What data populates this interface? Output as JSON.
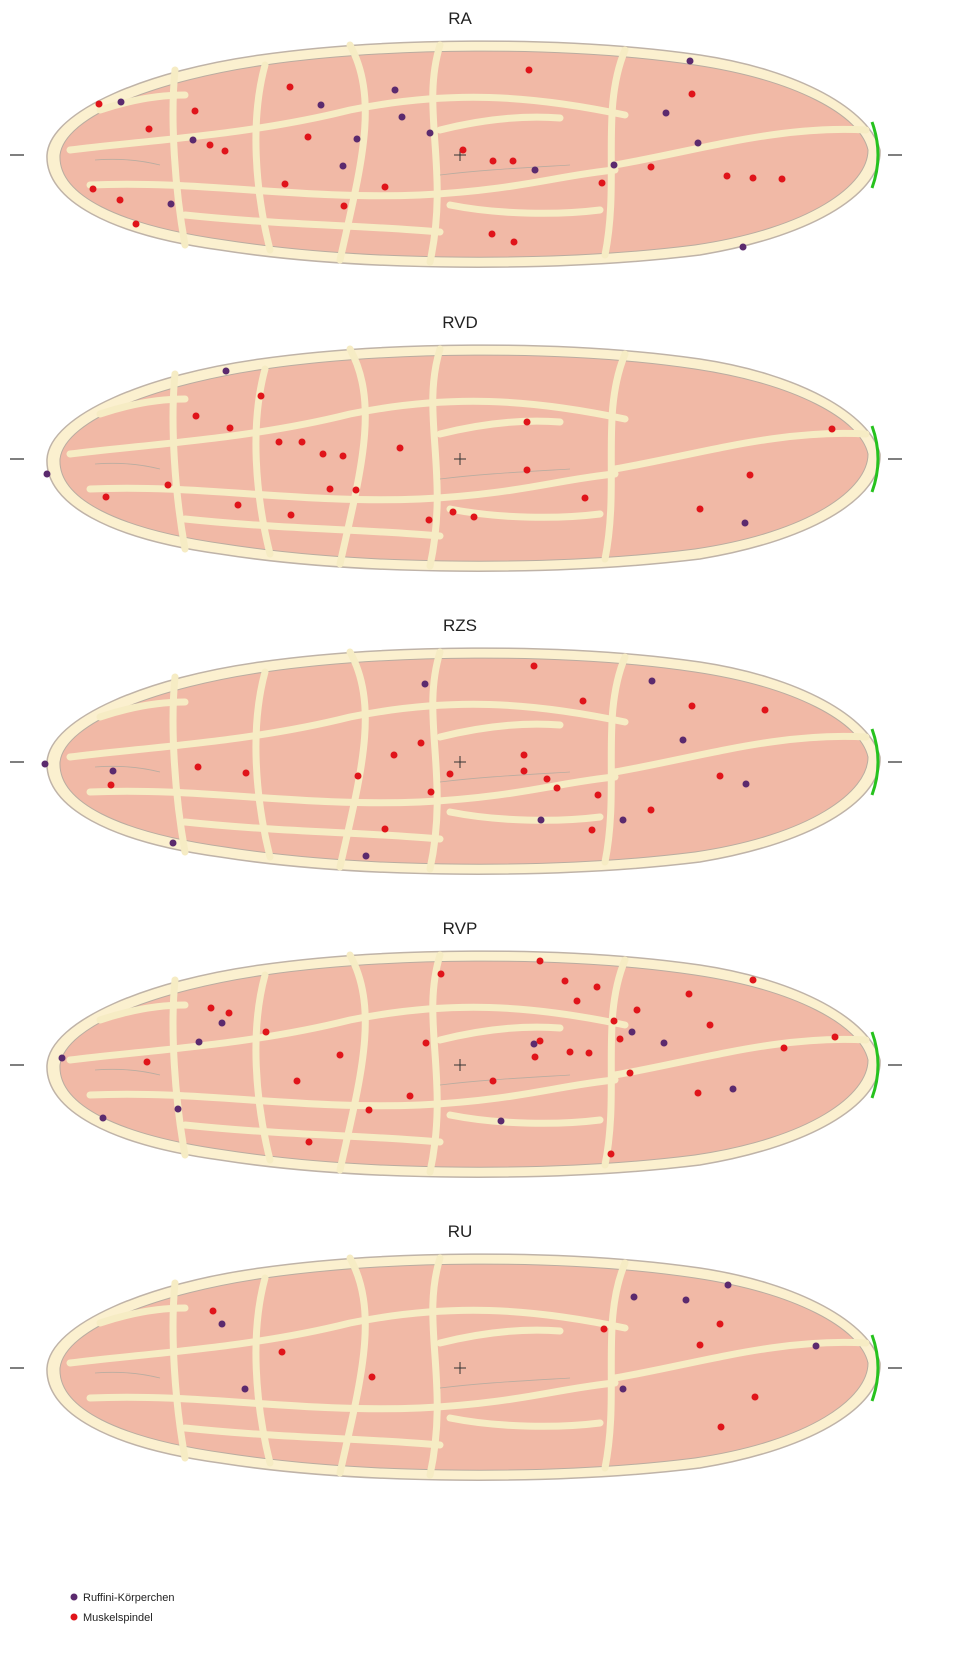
{
  "panels": [
    {
      "title": "RA"
    },
    {
      "title": "RVD"
    },
    {
      "title": "RZS"
    },
    {
      "title": "RVP"
    },
    {
      "title": "RU"
    }
  ],
  "legend": {
    "ruffini": "Ruffini-Körperchen",
    "spindle": "Muskelspindel"
  }
}
